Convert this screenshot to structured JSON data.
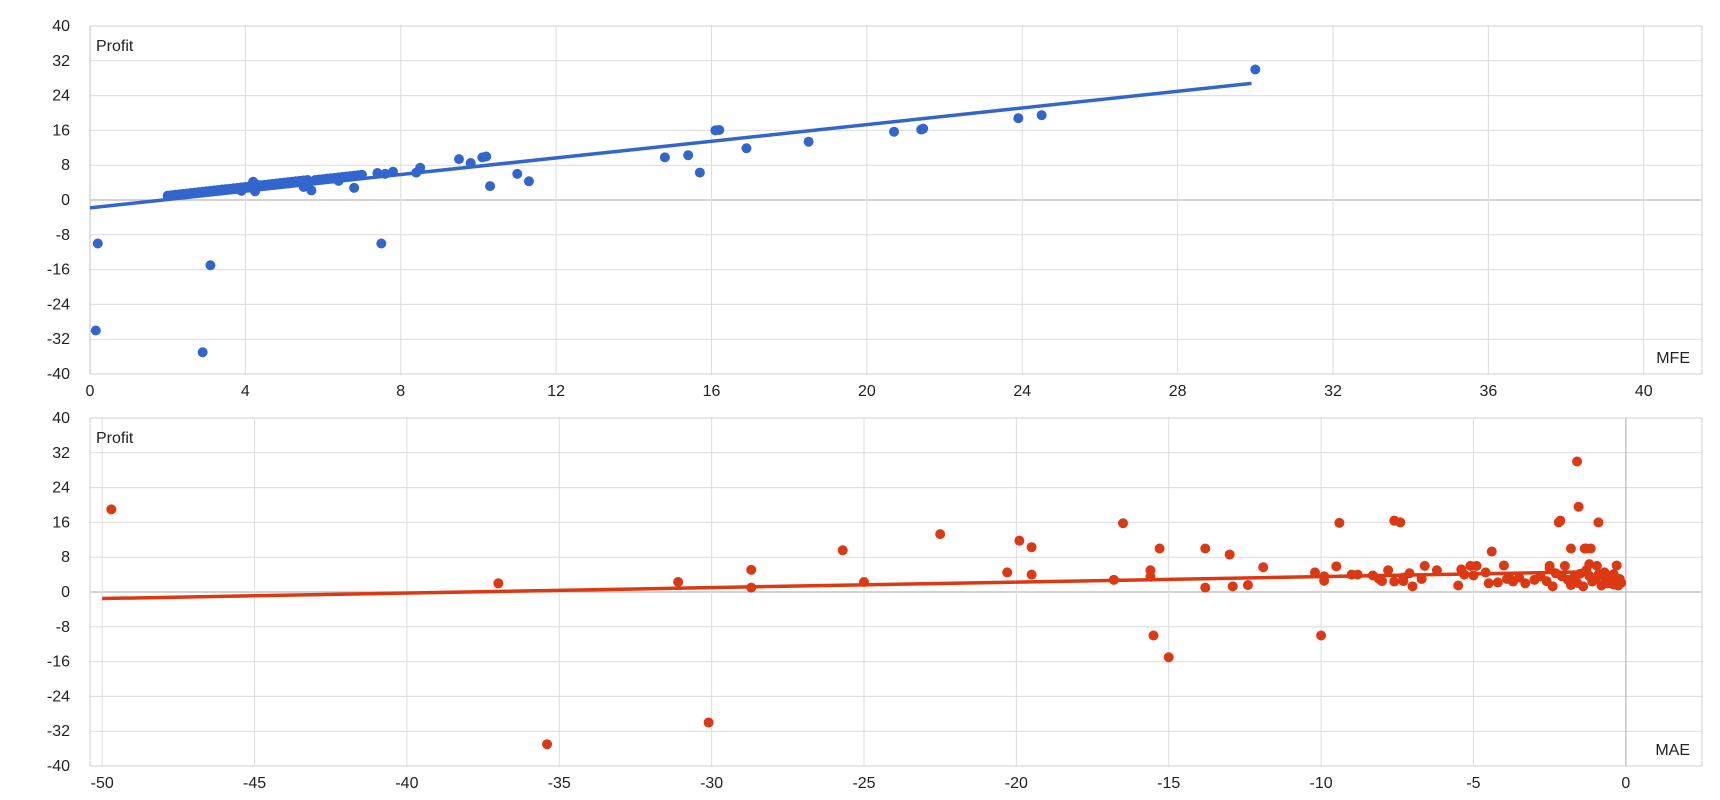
{
  "chart_data": [
    {
      "type": "scatter",
      "ylabel": "Profit",
      "xlabel": "MFE",
      "xlim": [
        0,
        41.5
      ],
      "ylim": [
        -40,
        40
      ],
      "xticks": [
        0,
        4,
        8,
        12,
        16,
        20,
        24,
        28,
        32,
        36,
        40
      ],
      "yticks": [
        -40,
        -32,
        -24,
        -16,
        -8,
        0,
        8,
        16,
        24,
        32,
        40
      ],
      "grid": true,
      "color": "#3366cc",
      "trendline": {
        "x": [
          0,
          29.9
        ],
        "y": [
          -1.8,
          26.8
        ]
      },
      "series": [
        {
          "x": [
            0.2,
            0.15,
            3.1,
            2.9,
            7.5,
            2.0,
            2.1,
            2.2,
            2.3,
            2.4,
            2.5,
            2.6,
            2.7,
            2.8,
            2.9,
            3.0,
            3.1,
            3.2,
            3.3,
            3.4,
            3.5,
            3.6,
            3.7,
            3.8,
            3.9,
            4.0,
            4.1,
            4.2,
            4.3,
            4.4,
            4.5,
            4.6,
            4.7,
            4.8,
            4.9,
            5.0,
            5.1,
            5.2,
            5.3,
            5.4,
            5.5,
            5.6,
            5.8,
            5.9,
            6.0,
            6.1,
            6.2,
            6.3,
            6.4,
            6.5,
            6.6,
            6.7,
            6.8,
            6.9,
            7.0,
            4.2,
            4.25,
            3.9,
            4.3,
            5.5,
            5.7,
            6.4,
            6.8,
            7.4,
            7.6,
            7.8,
            8.4,
            8.5,
            9.5,
            9.8,
            10.1,
            10.2,
            10.3,
            11.0,
            11.3,
            14.8,
            15.4,
            15.7,
            16.1,
            16.2,
            16.9,
            18.5,
            20.7,
            21.4,
            21.45,
            23.9,
            24.5,
            30.0
          ],
          "y": [
            -10.0,
            -30.0,
            -15.0,
            -35.0,
            -10.0,
            1.0,
            1.1,
            1.2,
            1.3,
            1.4,
            1.5,
            1.6,
            1.7,
            1.8,
            1.9,
            2.0,
            2.1,
            2.2,
            2.3,
            2.4,
            2.5,
            2.6,
            2.7,
            2.8,
            2.9,
            3.0,
            3.1,
            3.2,
            3.3,
            3.4,
            3.5,
            3.6,
            3.7,
            3.8,
            3.9,
            4.0,
            4.1,
            4.2,
            4.3,
            4.4,
            4.5,
            4.6,
            4.6,
            4.7,
            4.8,
            4.9,
            5.0,
            5.1,
            5.2,
            5.3,
            5.4,
            5.5,
            5.6,
            5.7,
            5.8,
            4.2,
            2.0,
            2.1,
            3.5,
            3.0,
            2.2,
            4.4,
            2.8,
            6.2,
            6.0,
            6.5,
            6.3,
            7.4,
            9.4,
            8.5,
            9.8,
            10.0,
            3.2,
            6.0,
            4.3,
            9.8,
            10.3,
            6.3,
            16.0,
            16.1,
            11.9,
            13.4,
            15.7,
            16.2,
            16.4,
            18.8,
            19.5,
            30.0
          ]
        }
      ]
    },
    {
      "type": "scatter",
      "ylabel": "Profit",
      "xlabel": "MAE",
      "xlim": [
        -50.4,
        2.5
      ],
      "ylim": [
        -40,
        40
      ],
      "xticks": [
        -50,
        -45,
        -40,
        -35,
        -30,
        -25,
        -20,
        -15,
        -10,
        -5,
        0
      ],
      "yticks": [
        -40,
        -32,
        -24,
        -16,
        -8,
        0,
        8,
        16,
        24,
        32,
        40
      ],
      "grid": true,
      "color": "#dc3912",
      "trendline": {
        "x": [
          -50,
          -1.5
        ],
        "y": [
          -1.5,
          4.6
        ]
      },
      "series": [
        {
          "x": [
            -49.7,
            -37.0,
            -35.4,
            -31.1,
            -30.1,
            -28.7,
            -28.7,
            -25.7,
            -25.0,
            -22.5,
            -20.3,
            -19.9,
            -19.5,
            -19.5,
            -16.8,
            -16.5,
            -15.6,
            -15.6,
            -15.5,
            -15.3,
            -15.0,
            -13.8,
            -13.8,
            -13.0,
            -12.9,
            -12.4,
            -11.9,
            -10.2,
            -10.0,
            -9.9,
            -9.9,
            -9.5,
            -9.4,
            -9.0,
            -8.8,
            -8.3,
            -8.1,
            -8.0,
            -7.8,
            -7.6,
            -7.6,
            -7.4,
            -7.3,
            -7.3,
            -7.1,
            -7.0,
            -6.7,
            -6.6,
            -6.2,
            -5.5,
            -5.4,
            -5.3,
            -5.1,
            -5.0,
            -4.9,
            -4.6,
            -4.5,
            -4.4,
            -4.2,
            -4.0,
            -3.9,
            -3.7,
            -3.5,
            -3.3,
            -3.0,
            -2.8,
            -2.6,
            -2.5,
            -2.4,
            -2.3,
            -2.1,
            -2.0,
            -1.9,
            -1.8,
            -1.7,
            -1.6,
            -1.5,
            -1.4,
            -1.3,
            -1.2,
            -1.1,
            -1.0,
            -0.9,
            -0.8,
            -0.7,
            -0.6,
            -0.5,
            -0.4,
            -0.3,
            -0.2,
            -0.2,
            -2.2,
            -2.15,
            -1.55,
            -1.35,
            -1.15,
            -0.95,
            -1.8,
            -1.3,
            -0.9,
            -0.7,
            -1.2,
            -0.3,
            -0.15,
            -0.25,
            -0.5,
            -0.4,
            -1.6,
            -2.5,
            -3.8
          ],
          "y": [
            19.0,
            2.0,
            -35.0,
            2.3,
            -30.0,
            5.1,
            1.0,
            9.6,
            2.3,
            13.3,
            4.5,
            11.8,
            10.3,
            4.0,
            2.8,
            15.8,
            5.0,
            3.5,
            -10.0,
            10.0,
            -15.0,
            10.0,
            1.0,
            8.6,
            1.3,
            1.6,
            5.7,
            4.5,
            -10.0,
            3.6,
            2.6,
            5.9,
            15.9,
            4.0,
            4.0,
            3.8,
            3.0,
            2.5,
            5.0,
            16.4,
            2.4,
            16.0,
            2.5,
            3.3,
            4.3,
            1.3,
            3.0,
            6.0,
            5.0,
            1.5,
            5.2,
            4.0,
            6.0,
            3.8,
            6.0,
            4.5,
            2.0,
            9.3,
            2.2,
            6.1,
            3.0,
            2.4,
            3.3,
            2.0,
            2.8,
            3.6,
            2.5,
            5.5,
            1.3,
            4.3,
            3.6,
            6.0,
            2.8,
            1.6,
            3.4,
            30.0,
            4.2,
            1.3,
            10.0,
            6.4,
            2.4,
            3.0,
            16.0,
            1.5,
            4.5,
            2.0,
            3.7,
            1.7,
            6.1,
            2.3,
            3.0,
            16.0,
            16.4,
            19.6,
            10.0,
            10.0,
            6.0,
            10.0,
            5.0,
            4.0,
            3.3,
            3.7,
            2.2,
            2.1,
            1.5,
            3.5,
            4.1,
            2.1,
            6.0,
            3.0
          ]
        }
      ]
    }
  ]
}
